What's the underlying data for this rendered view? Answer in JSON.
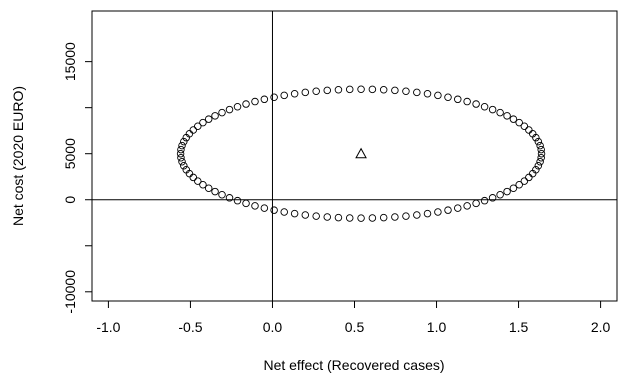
{
  "chart_data": {
    "type": "scatter",
    "title": "",
    "xlabel": "Net effect (Recovered cases)",
    "ylabel": "Net cost (2020 EURO)",
    "xlim": [
      -1.1,
      2.1
    ],
    "ylim": [
      -11000,
      20500
    ],
    "x_ticks": [
      -1.0,
      -0.5,
      0.0,
      0.5,
      1.0,
      1.5,
      2.0
    ],
    "x_tick_labels": [
      "-1.0",
      "-0.5",
      "0.0",
      "0.5",
      "1.0",
      "1.5",
      "2.0"
    ],
    "y_ticks": [
      -10000,
      0,
      5000,
      15000
    ],
    "y_tick_labels": [
      "-10000",
      "0",
      "5000",
      "15000"
    ],
    "y_minor_ticks": [
      -5000,
      10000
    ],
    "grid": false,
    "reference_lines": {
      "x": 0,
      "y": 0
    },
    "ellipse": {
      "center_x": 0.54,
      "center_y": 5000,
      "semi_axis_x": 1.1,
      "semi_axis_y": 7000,
      "marker": "open-circle"
    },
    "point_estimate": {
      "x": 0.54,
      "y": 5000,
      "marker": "open-triangle"
    }
  }
}
